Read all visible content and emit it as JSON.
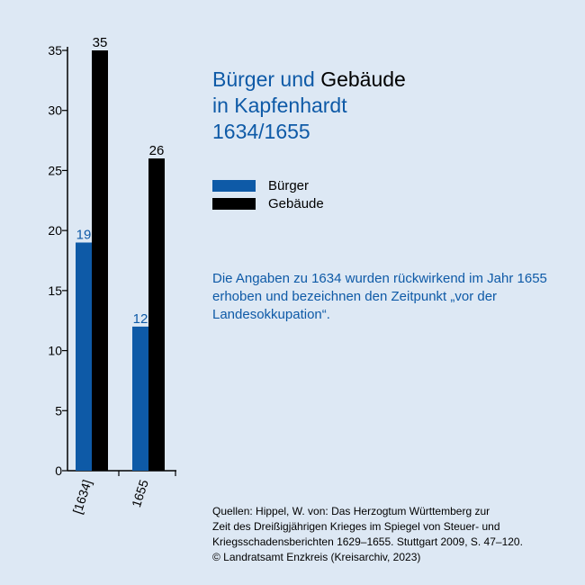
{
  "title": {
    "line1_a": "Bürger und ",
    "line1_b": "Gebäude",
    "line2": "in Kapfenhardt",
    "line3": "1634/1655"
  },
  "colors": {
    "buerger": "#0e5aa7",
    "gebaeude": "#000000",
    "background": "#dde8f4"
  },
  "note": "Die Angaben zu 1634 wurden rückwirkend im Jahr 1655 erhoben und bezeichnen den Zeitpunkt „vor der Landesokkupation“.",
  "sources": {
    "line1": "Quellen: Hippel, W. von: Das Herzogtum Württemberg zur",
    "line2": "Zeit des Dreißigjährigen Krieges im Spiegel von Steuer- und",
    "line3": "Kriegsschadensberichten 1629–1655. Stuttgart 2009, S. 47–120.",
    "line4": "© Landratsamt Enzkreis (Kreisarchiv, 2023)"
  },
  "chart_data": {
    "type": "bar",
    "categories": [
      "[1634]",
      "1655"
    ],
    "series": [
      {
        "name": "Bürger",
        "values": [
          19,
          12
        ],
        "color": "#0e5aa7"
      },
      {
        "name": "Gebäude",
        "values": [
          35,
          26
        ],
        "color": "#000000"
      }
    ],
    "ylim": [
      0,
      35
    ],
    "yticks": [
      0,
      5,
      10,
      15,
      20,
      25,
      30,
      35
    ],
    "legend_position": "right",
    "grid": false
  }
}
